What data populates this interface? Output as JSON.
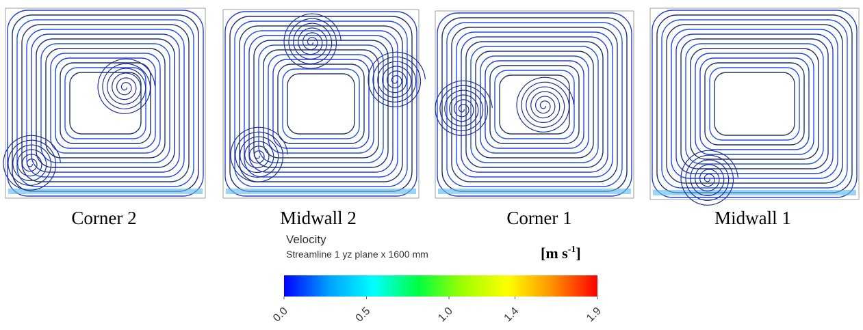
{
  "panels": [
    {
      "label": "Corner 2"
    },
    {
      "label": "Midwall 2"
    },
    {
      "label": "Corner 1"
    },
    {
      "label": "Midwall 1"
    }
  ],
  "legend": {
    "title": "Velocity",
    "subtitle": "Streamline 1 yz plane x 1600 mm",
    "unit": {
      "base": "[m s",
      "exponent": "-1",
      "close": "]"
    },
    "lim": [
      0,
      1.9
    ],
    "ticks": [
      {
        "value": 0,
        "label": "0.0"
      },
      {
        "value": 0.5,
        "label": "0.5"
      },
      {
        "value": 1.0,
        "label": "1.0"
      },
      {
        "value": 1.4,
        "label": "1.4"
      },
      {
        "value": 1.9,
        "label": "1.9"
      }
    ],
    "colormap": [
      "#0000ff",
      "#00a0ff",
      "#00ffff",
      "#00ff40",
      "#a0ff00",
      "#ffff00",
      "#ff9000",
      "#ff0000"
    ]
  }
}
